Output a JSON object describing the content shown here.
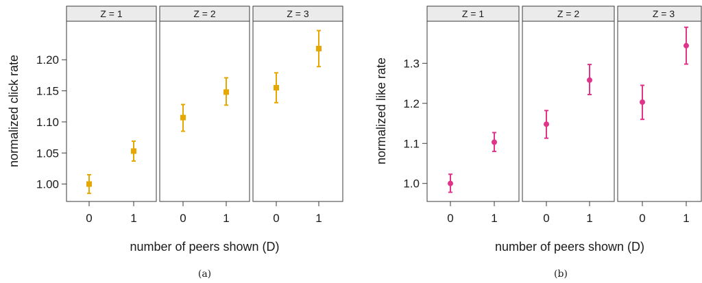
{
  "chart_data": [
    {
      "type": "scatter",
      "subtitle": "(a)",
      "facet_labels": [
        "Z = 1",
        "Z = 2",
        "Z = 3"
      ],
      "xlabel": "number of peers shown (D)",
      "ylabel": "normalized click rate",
      "x_ticks": [
        "0",
        "1"
      ],
      "y_ticks": [
        "1.00",
        "1.05",
        "1.10",
        "1.15",
        "1.20"
      ],
      "ylim": [
        0.972,
        1.262
      ],
      "marker": "square",
      "color": "#E6A800",
      "facets": [
        {
          "label": "Z = 1",
          "points": [
            {
              "x": "0",
              "y": 1.0,
              "lo": 0.985,
              "hi": 1.015
            },
            {
              "x": "1",
              "y": 1.053,
              "lo": 1.037,
              "hi": 1.069
            }
          ]
        },
        {
          "label": "Z = 2",
          "points": [
            {
              "x": "0",
              "y": 1.107,
              "lo": 1.085,
              "hi": 1.128
            },
            {
              "x": "1",
              "y": 1.148,
              "lo": 1.127,
              "hi": 1.171
            }
          ]
        },
        {
          "label": "Z = 3",
          "points": [
            {
              "x": "0",
              "y": 1.155,
              "lo": 1.131,
              "hi": 1.179
            },
            {
              "x": "1",
              "y": 1.218,
              "lo": 1.189,
              "hi": 1.247
            }
          ]
        }
      ]
    },
    {
      "type": "scatter",
      "subtitle": "(b)",
      "facet_labels": [
        "Z = 1",
        "Z = 2",
        "Z = 3"
      ],
      "xlabel": "number of peers shown (D)",
      "ylabel": "normalized like rate",
      "x_ticks": [
        "0",
        "1"
      ],
      "y_ticks": [
        "1.0",
        "1.1",
        "1.2",
        "1.3"
      ],
      "ylim": [
        0.955,
        1.405
      ],
      "marker": "circle",
      "color": "#E0338A",
      "facets": [
        {
          "label": "Z = 1",
          "points": [
            {
              "x": "0",
              "y": 1.0,
              "lo": 0.978,
              "hi": 1.023
            },
            {
              "x": "1",
              "y": 1.103,
              "lo": 1.08,
              "hi": 1.127
            }
          ]
        },
        {
          "label": "Z = 2",
          "points": [
            {
              "x": "0",
              "y": 1.148,
              "lo": 1.113,
              "hi": 1.182
            },
            {
              "x": "1",
              "y": 1.258,
              "lo": 1.222,
              "hi": 1.297
            }
          ]
        },
        {
          "label": "Z = 3",
          "points": [
            {
              "x": "0",
              "y": 1.203,
              "lo": 1.16,
              "hi": 1.245
            },
            {
              "x": "1",
              "y": 1.344,
              "lo": 1.298,
              "hi": 1.39
            }
          ]
        }
      ]
    }
  ]
}
